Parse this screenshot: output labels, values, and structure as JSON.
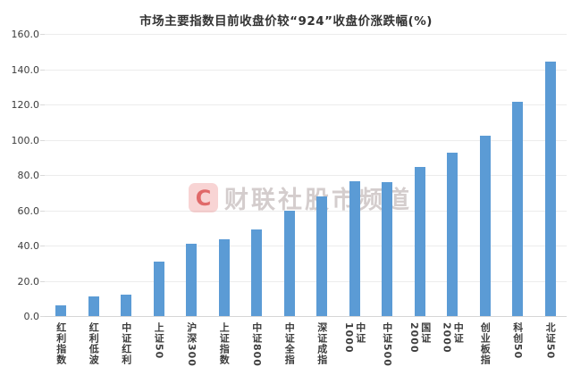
{
  "title": "市场主要指数目前收盘价较“924”收盘价涨跌幅(%)",
  "watermark": {
    "logo_letter": "C",
    "text": "财联社股市频道"
  },
  "colors": {
    "bar": "#5B9BD5",
    "grid": "#ececec",
    "axis": "#d6d6d6",
    "title_text": "#333333",
    "tick_text": "#3d3d3d",
    "watermark_logo": "#d84646",
    "watermark_text": "#cdc4c4"
  },
  "chart_data": {
    "type": "bar",
    "title": "市场主要指数目前收盘价较“924”收盘价涨跌幅(%)",
    "categories": [
      "红利指数",
      "红利低波",
      "中证红利",
      "上证50",
      "沪深300",
      "上证指数",
      "中证800",
      "中证全指",
      "深证成指",
      "中证1000",
      "中证500",
      "国证2000",
      "中证2000",
      "创业板指",
      "科创50",
      "北证50"
    ],
    "values": [
      6,
      11,
      12,
      31,
      41,
      43.5,
      49.5,
      60,
      68,
      76.5,
      76,
      85,
      93,
      102.5,
      122,
      145
    ],
    "xlabel": "",
    "ylabel": "",
    "ylim": [
      0,
      160
    ],
    "ytick_step": 20,
    "ytick_labels": [
      "0.0",
      "20.0",
      "40.0",
      "60.0",
      "80.0",
      "100.0",
      "120.0",
      "140.0",
      "160.0"
    ],
    "grid": true,
    "legend": false,
    "bar_color": "#5B9BD5"
  }
}
